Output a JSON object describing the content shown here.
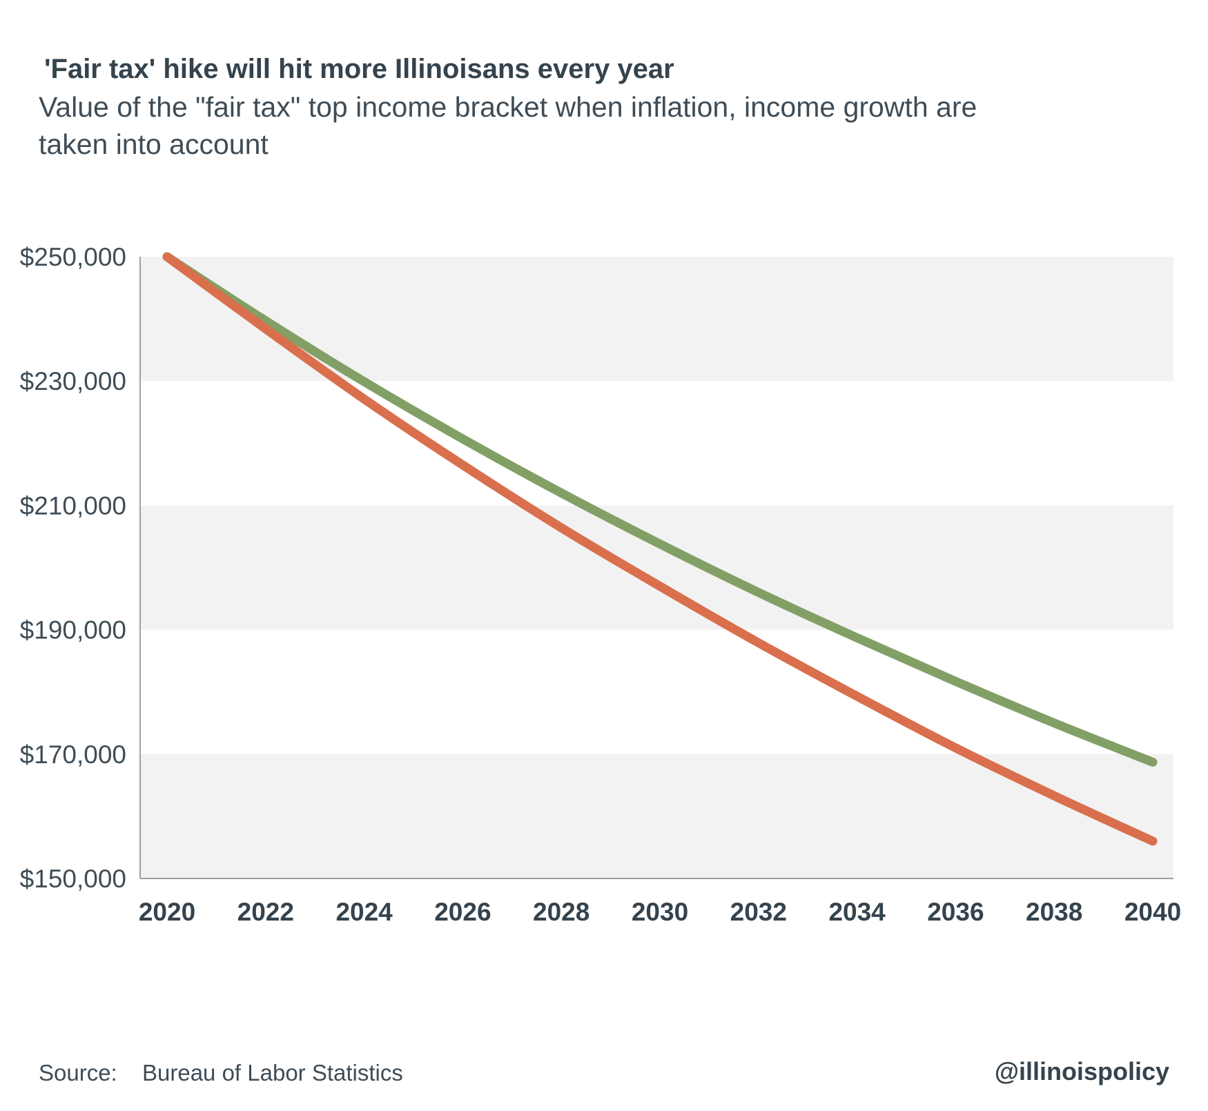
{
  "header": {
    "title": "'Fair tax' hike will hit more Illinoisans every year",
    "subtitle": "Value of the \"fair tax\" top income bracket when inflation, income growth are taken into account"
  },
  "footer": {
    "source_label": "Source:",
    "source_text": "Bureau of Labor Statistics",
    "handle": "@illinoispolicy"
  },
  "colors": {
    "green_series": "#82a066",
    "orange_series": "#d96f4c",
    "band": "#f2f2f2",
    "axis": "#9aa0a4"
  },
  "chart_data": {
    "type": "line",
    "title": "'Fair tax' hike will hit more Illinoisans every year",
    "xlabel": "",
    "ylabel": "",
    "xlim": [
      2020,
      2040
    ],
    "ylim": [
      150000,
      250000
    ],
    "grid": false,
    "legend": "none",
    "x_ticks": [
      2020,
      2022,
      2024,
      2026,
      2028,
      2030,
      2032,
      2034,
      2036,
      2038,
      2040
    ],
    "y_ticks": [
      150000,
      170000,
      190000,
      210000,
      230000,
      250000
    ],
    "y_tick_labels": [
      "$150,000",
      "$170,000",
      "$190,000",
      "$210,000",
      "$230,000",
      "$250,000"
    ],
    "x": [
      2020,
      2022,
      2024,
      2026,
      2028,
      2030,
      2032,
      2034,
      2036,
      2038,
      2040
    ],
    "series": [
      {
        "color": "#82a066",
        "values": [
          250000,
          239700,
          229900,
          220700,
          212000,
          203800,
          196000,
          188700,
          181700,
          175000,
          168700
        ]
      },
      {
        "color": "#d96f4c",
        "values": [
          250000,
          238400,
          227100,
          216500,
          206400,
          197000,
          187900,
          179300,
          171000,
          163300,
          156000
        ]
      }
    ]
  }
}
